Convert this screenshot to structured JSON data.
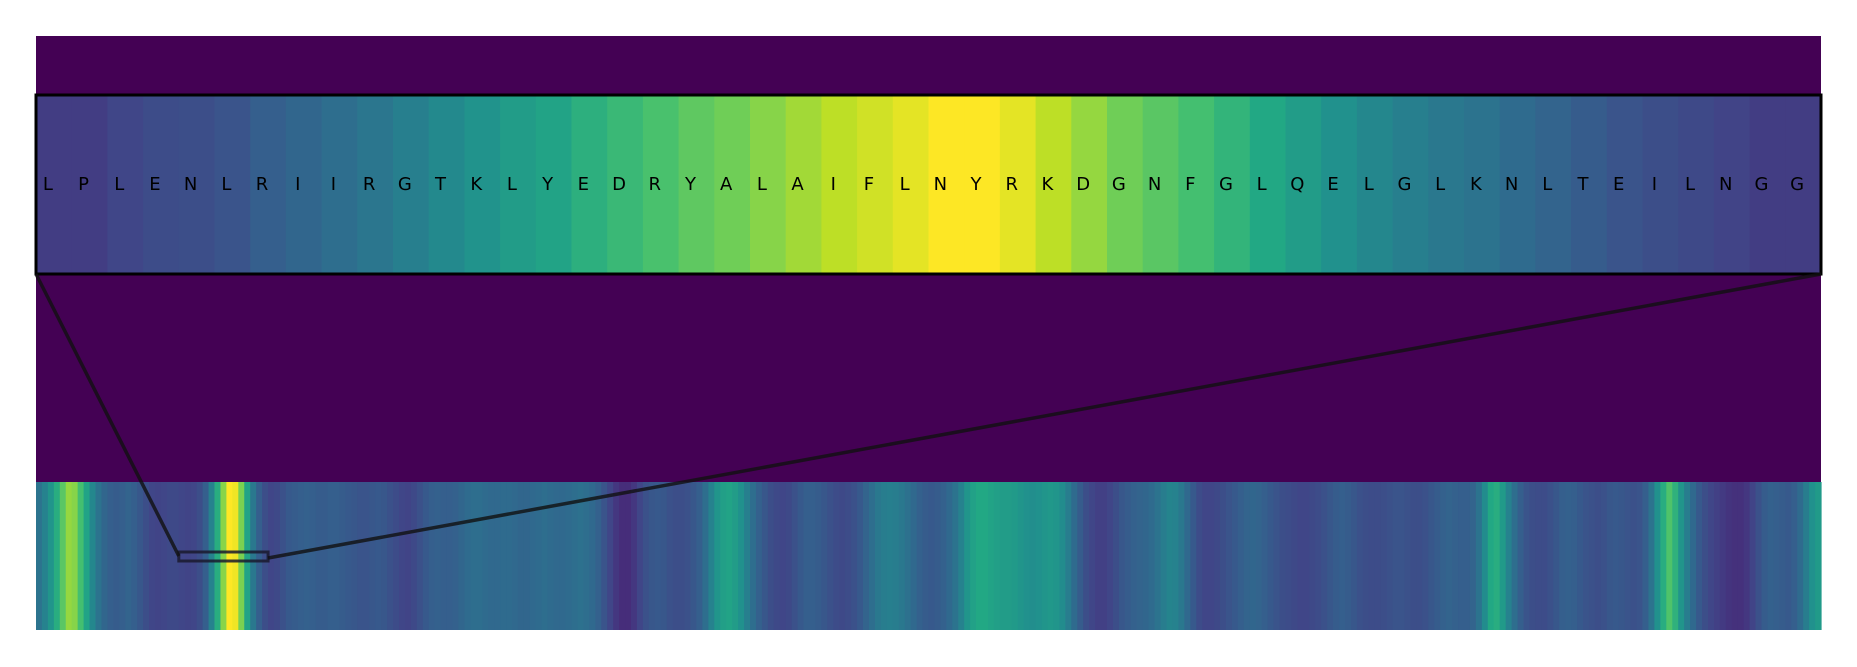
{
  "chart_data": {
    "type": "heatmap",
    "colormap": "viridis",
    "zoom_panel": {
      "residues": [
        "L",
        "P",
        "L",
        "E",
        "N",
        "L",
        "R",
        "I",
        "I",
        "R",
        "G",
        "T",
        "K",
        "L",
        "Y",
        "E",
        "D",
        "R",
        "Y",
        "A",
        "L",
        "A",
        "I",
        "F",
        "L",
        "N",
        "Y",
        "R",
        "K",
        "D",
        "G",
        "N",
        "F",
        "G",
        "L",
        "Q",
        "E",
        "L",
        "G",
        "L",
        "K",
        "N",
        "L",
        "T",
        "E",
        "I",
        "L",
        "N",
        "G",
        "G"
      ],
      "values": [
        0.18,
        0.18,
        0.21,
        0.23,
        0.24,
        0.26,
        0.3,
        0.33,
        0.36,
        0.39,
        0.43,
        0.47,
        0.51,
        0.55,
        0.58,
        0.63,
        0.67,
        0.71,
        0.75,
        0.78,
        0.82,
        0.86,
        0.9,
        0.93,
        0.96,
        1.0,
        1.0,
        0.96,
        0.9,
        0.84,
        0.78,
        0.74,
        0.7,
        0.65,
        0.6,
        0.55,
        0.5,
        0.46,
        0.43,
        0.4,
        0.38,
        0.35,
        0.32,
        0.29,
        0.26,
        0.24,
        0.22,
        0.2,
        0.18,
        0.18
      ]
    },
    "overview_track": {
      "length": 1000,
      "values": [
        0.38,
        0.44,
        0.52,
        0.62,
        0.74,
        0.84,
        0.82,
        0.7,
        0.58,
        0.46,
        0.38,
        0.33,
        0.3,
        0.29,
        0.3,
        0.32,
        0.3,
        0.27,
        0.24,
        0.21,
        0.2,
        0.21,
        0.22,
        0.22,
        0.21,
        0.2,
        0.21,
        0.24,
        0.3,
        0.44,
        0.62,
        0.82,
        1.0,
        0.98,
        0.8,
        0.58,
        0.4,
        0.3,
        0.24,
        0.21,
        0.22,
        0.25,
        0.28,
        0.29,
        0.3,
        0.31,
        0.3,
        0.29,
        0.29,
        0.3,
        0.3,
        0.29,
        0.28,
        0.27,
        0.26,
        0.26,
        0.27,
        0.28,
        0.27,
        0.25,
        0.23,
        0.21,
        0.2,
        0.22,
        0.25,
        0.28,
        0.3,
        0.31,
        0.3,
        0.3,
        0.31,
        0.33,
        0.35,
        0.36,
        0.36,
        0.35,
        0.34,
        0.34,
        0.35,
        0.35,
        0.34,
        0.33,
        0.33,
        0.34,
        0.35,
        0.36,
        0.35,
        0.34,
        0.34,
        0.35,
        0.36,
        0.37,
        0.36,
        0.34,
        0.31,
        0.26,
        0.21,
        0.16,
        0.13,
        0.13,
        0.16,
        0.21,
        0.25,
        0.27,
        0.28,
        0.27,
        0.25,
        0.24,
        0.24,
        0.25,
        0.27,
        0.3,
        0.36,
        0.44,
        0.52,
        0.56,
        0.58,
        0.55,
        0.5,
        0.43,
        0.36,
        0.31,
        0.27,
        0.24,
        0.22,
        0.21,
        0.22,
        0.25,
        0.28,
        0.3,
        0.3,
        0.29,
        0.27,
        0.25,
        0.23,
        0.22,
        0.23,
        0.25,
        0.28,
        0.32,
        0.36,
        0.4,
        0.42,
        0.43,
        0.42,
        0.4,
        0.37,
        0.34,
        0.31,
        0.29,
        0.28,
        0.29,
        0.31,
        0.34,
        0.38,
        0.44,
        0.52,
        0.57,
        0.6,
        0.6,
        0.58,
        0.56,
        0.55,
        0.55,
        0.54,
        0.52,
        0.5,
        0.49,
        0.5,
        0.52,
        0.53,
        0.52,
        0.48,
        0.42,
        0.35,
        0.29,
        0.24,
        0.21,
        0.19,
        0.19,
        0.21,
        0.24,
        0.27,
        0.29,
        0.31,
        0.32,
        0.33,
        0.35,
        0.38,
        0.42,
        0.45,
        0.44,
        0.4,
        0.34,
        0.28,
        0.23,
        0.21,
        0.21,
        0.22,
        0.24,
        0.26,
        0.28,
        0.3,
        0.32,
        0.33,
        0.32,
        0.3,
        0.28,
        0.26,
        0.24,
        0.23,
        0.22,
        0.21,
        0.21,
        0.22,
        0.23,
        0.25,
        0.27,
        0.29,
        0.3,
        0.29,
        0.27,
        0.25,
        0.24,
        0.23,
        0.23,
        0.24,
        0.25,
        0.26,
        0.26,
        0.25,
        0.24,
        0.24,
        0.25,
        0.27,
        0.29,
        0.31,
        0.32,
        0.31,
        0.3,
        0.3,
        0.32,
        0.38,
        0.48,
        0.6,
        0.62,
        0.54,
        0.44,
        0.36,
        0.3,
        0.26,
        0.24,
        0.23,
        0.23,
        0.25,
        0.27,
        0.3,
        0.31,
        0.3,
        0.28,
        0.26,
        0.25,
        0.24,
        0.25,
        0.27,
        0.28,
        0.27,
        0.26,
        0.25,
        0.26,
        0.3,
        0.38,
        0.5,
        0.62,
        0.72,
        0.64,
        0.52,
        0.42,
        0.34,
        0.28,
        0.24,
        0.21,
        0.19,
        0.17,
        0.15,
        0.14,
        0.14,
        0.16,
        0.2,
        0.25,
        0.29,
        0.31,
        0.3,
        0.29,
        0.28,
        0.3,
        0.35,
        0.42,
        0.5,
        0.54
      ]
    },
    "zoom_window": {
      "start": 80,
      "end": 130
    }
  }
}
